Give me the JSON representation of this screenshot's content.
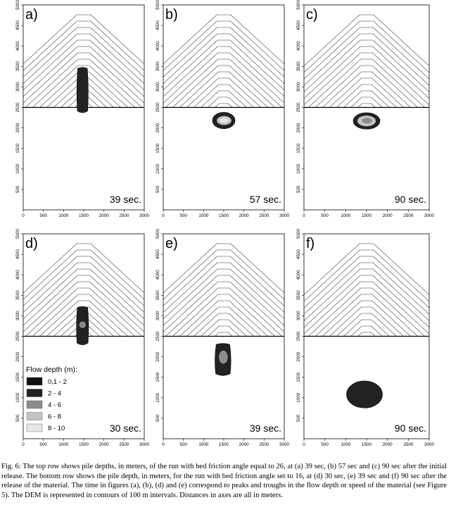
{
  "panels": [
    {
      "id": "a",
      "label": "a)",
      "time_label": "39 sec.",
      "blobs": [
        {
          "shape": "elongated",
          "x_center": 1470,
          "x_half_width": 150,
          "y_top": 3450,
          "y_bottom": 2380,
          "depth_class": "2 - 4"
        }
      ]
    },
    {
      "id": "b",
      "label": "b)",
      "time_label": "57 sec.",
      "blobs": [
        {
          "shape": "ellipse",
          "x_center": 1500,
          "y_center": 2180,
          "rx": 280,
          "ry": 200,
          "depth_class": "2 - 4"
        },
        {
          "shape": "ellipse",
          "x_center": 1510,
          "y_center": 2180,
          "rx": 180,
          "ry": 110,
          "depth_class": "6 - 8"
        },
        {
          "shape": "ellipse",
          "x_center": 1510,
          "y_center": 2185,
          "rx": 110,
          "ry": 60,
          "depth_class": "8 - 10"
        }
      ]
    },
    {
      "id": "c",
      "label": "c)",
      "time_label": "90 sec.",
      "blobs": [
        {
          "shape": "ellipse",
          "x_center": 1500,
          "y_center": 2170,
          "rx": 320,
          "ry": 200,
          "depth_class": "2 - 4"
        },
        {
          "shape": "ellipse",
          "x_center": 1500,
          "y_center": 2170,
          "rx": 220,
          "ry": 130,
          "depth_class": "6 - 8"
        },
        {
          "shape": "ellipse",
          "x_center": 1510,
          "y_center": 2175,
          "rx": 120,
          "ry": 70,
          "depth_class": "4 - 6"
        }
      ]
    },
    {
      "id": "d",
      "label": "d)",
      "time_label": "30 sec.",
      "blobs": [
        {
          "shape": "elongated",
          "x_center": 1470,
          "x_half_width": 160,
          "y_top": 3200,
          "y_bottom": 2300,
          "depth_class": "2 - 4"
        },
        {
          "shape": "ellipse",
          "x_center": 1470,
          "y_center": 2780,
          "rx": 80,
          "ry": 80,
          "depth_class": "4 - 6"
        }
      ]
    },
    {
      "id": "e",
      "label": "e)",
      "time_label": "39 sec.",
      "blobs": [
        {
          "shape": "elongated",
          "x_center": 1480,
          "x_half_width": 210,
          "y_top": 2300,
          "y_bottom": 1550,
          "depth_class": "2 - 4"
        },
        {
          "shape": "ellipse",
          "x_center": 1490,
          "y_center": 1990,
          "rx": 110,
          "ry": 160,
          "depth_class": "4 - 6"
        }
      ]
    },
    {
      "id": "f",
      "label": "f)",
      "time_label": "90 sec.",
      "blobs": [
        {
          "shape": "ellipse",
          "x_center": 1450,
          "y_center": 1080,
          "rx": 430,
          "ry": 330,
          "depth_class": "2 - 4"
        }
      ]
    }
  ],
  "axes": {
    "xlim": [
      0,
      3000
    ],
    "ylim": [
      0,
      5000
    ],
    "x_ticks": [
      "0",
      "500",
      "1000",
      "1500",
      "2000",
      "2500",
      "3000"
    ],
    "y_ticks": [
      "500",
      "1000",
      "1500",
      "2000",
      "2500",
      "3000",
      "3500",
      "4000",
      "4500",
      "5000"
    ],
    "contour_interval_m": 100,
    "slope_base_y": 2500
  },
  "legend": {
    "title": "Flow depth (m):",
    "items": [
      {
        "label": "0,1 - 2",
        "color": "#111111"
      },
      {
        "label": "2 - 4",
        "color": "#222222"
      },
      {
        "label": "4 - 6",
        "color": "#8c8c8c"
      },
      {
        "label": "6 - 8",
        "color": "#c4c4c4"
      },
      {
        "label": "8 - 10",
        "color": "#e6e6e6"
      }
    ]
  },
  "caption": "Fig. 6: The top row shows pile depths, in meters, of the run with bed friction angle equal to 26, at (a) 39 sec, (b) 57 sec and (c) 90 sec after the initial release. The bottom row shows the pile depth, in meters, for the run with bed friction angle set to 16, at (d) 30 sec, (e) 39 sec and (f) 90 sec after the release of the material. The time in figures (a), (b), (d) and (e) correspond to peaks and troughs in the flow depth or speed of the material (see Figure 5). The DEM is represented in contours of 100 m intervals. Distances in axes are all in meters."
}
